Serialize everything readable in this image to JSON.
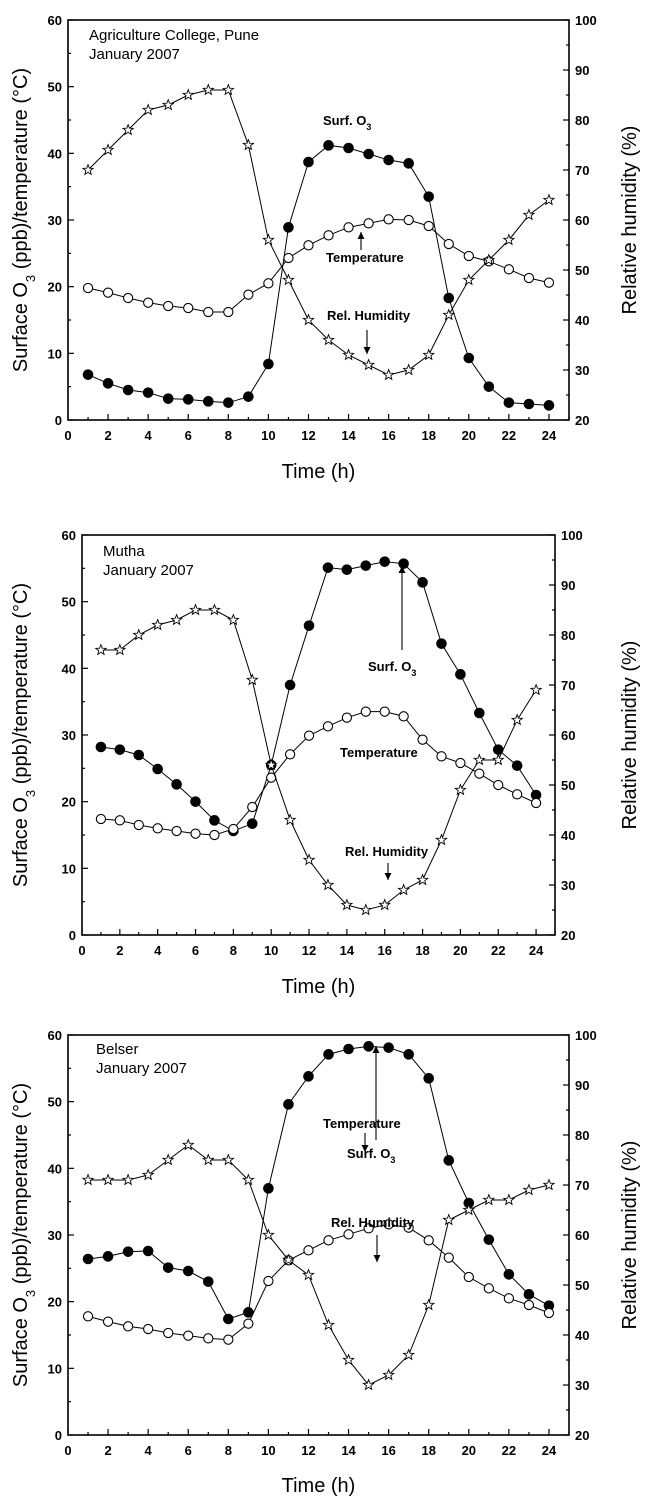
{
  "axes_text": {
    "y_left_prefix": "Surface O",
    "y_left_sub": "3",
    "y_left_suffix": " (ppb)/temperature (°C)",
    "y_right": "Relative humidity (%)",
    "x": "Time (h)",
    "annot_o3_prefix": "Surf. O",
    "annot_o3_sub": "3",
    "annot_temp": "Temperature",
    "annot_rh": "Rel. Humidity"
  },
  "chart_data": [
    {
      "type": "line",
      "site": "Agriculture College, Pune",
      "period": "January 2007",
      "xlabel": "Time (h)",
      "ylabel_left": "Surface O3 (ppb)/temperature (°C)",
      "ylabel_right": "Relative humidity (%)",
      "xlim": [
        0,
        25
      ],
      "ylim_left": [
        0,
        60
      ],
      "ylim_right": [
        20,
        100
      ],
      "x": [
        1,
        2,
        3,
        4,
        5,
        6,
        7,
        8,
        9,
        10,
        11,
        12,
        13,
        14,
        15,
        16,
        17,
        18,
        19,
        20,
        21,
        22,
        23,
        24
      ],
      "series": [
        {
          "name": "Surf. O3",
          "axis": "left",
          "marker": "filled-circle",
          "values": [
            6.8,
            5.5,
            4.5,
            4.1,
            3.2,
            3.1,
            2.8,
            2.6,
            3.5,
            8.4,
            28.9,
            38.7,
            41.2,
            40.8,
            39.9,
            39.0,
            38.5,
            33.5,
            18.3,
            9.3,
            5.0,
            2.6,
            2.4,
            2.2
          ]
        },
        {
          "name": "Temperature",
          "axis": "left",
          "marker": "open-circle",
          "values": [
            19.8,
            19.1,
            18.3,
            17.6,
            17.1,
            16.8,
            16.2,
            16.2,
            18.8,
            20.5,
            24.3,
            26.2,
            27.7,
            28.9,
            29.5,
            30.1,
            30.0,
            29.1,
            26.4,
            24.6,
            23.8,
            22.6,
            21.3,
            20.6
          ]
        },
        {
          "name": "Rel. Humidity",
          "axis": "right",
          "marker": "open-star",
          "values": [
            70,
            74,
            78,
            82,
            83,
            85,
            86,
            86,
            75,
            56,
            48,
            40,
            36,
            33,
            31,
            29,
            30,
            33,
            41,
            48,
            52,
            56,
            61,
            64
          ]
        }
      ]
    },
    {
      "type": "line",
      "site": "Mutha",
      "period": "January 2007",
      "xlabel": "Time (h)",
      "ylabel_left": "Surface O3 (ppb)/temperature (°C)",
      "ylabel_right": "Relative humidity (%)",
      "xlim": [
        0,
        25
      ],
      "ylim_left": [
        0,
        60
      ],
      "ylim_right": [
        20,
        100
      ],
      "x": [
        1,
        2,
        3,
        4,
        5,
        6,
        7,
        8,
        9,
        10,
        11,
        12,
        13,
        14,
        15,
        16,
        17,
        18,
        19,
        20,
        21,
        22,
        23,
        24
      ],
      "series": [
        {
          "name": "Surf. O3",
          "axis": "left",
          "marker": "filled-circle",
          "values": [
            28.2,
            27.8,
            27.0,
            24.9,
            22.6,
            20.0,
            17.2,
            15.6,
            16.7,
            25.5,
            37.5,
            46.4,
            55.1,
            54.8,
            55.4,
            56.0,
            55.7,
            52.9,
            43.7,
            39.1,
            33.3,
            27.8,
            25.4,
            21.0
          ]
        },
        {
          "name": "Temperature",
          "axis": "left",
          "marker": "open-circle",
          "values": [
            17.4,
            17.2,
            16.5,
            16.0,
            15.6,
            15.2,
            15.0,
            15.9,
            19.2,
            23.6,
            27.1,
            29.9,
            31.3,
            32.6,
            33.5,
            33.5,
            32.8,
            29.3,
            26.8,
            25.8,
            24.2,
            22.5,
            21.1,
            19.8
          ]
        },
        {
          "name": "Rel. Humidity",
          "axis": "right",
          "marker": "open-star",
          "values": [
            77,
            77,
            80,
            82,
            83,
            85,
            85,
            83,
            71,
            54,
            43,
            35,
            30,
            26,
            25,
            26,
            29,
            31,
            39,
            49,
            55,
            55,
            63,
            69
          ]
        }
      ]
    },
    {
      "type": "line",
      "site": "Belser",
      "period": "January 2007",
      "xlabel": "Time (h)",
      "ylabel_left": "Surface O3 (ppb)/temperature (°C)",
      "ylabel_right": "Relative humidity (%)",
      "xlim": [
        0,
        25
      ],
      "ylim_left": [
        0,
        60
      ],
      "ylim_right": [
        20,
        100
      ],
      "x": [
        1,
        2,
        3,
        4,
        5,
        6,
        7,
        8,
        9,
        10,
        11,
        12,
        13,
        14,
        15,
        16,
        17,
        18,
        19,
        20,
        21,
        22,
        23,
        24
      ],
      "series": [
        {
          "name": "Surf. O3",
          "axis": "left",
          "marker": "filled-circle",
          "values": [
            26.4,
            26.8,
            27.5,
            27.6,
            25.1,
            24.6,
            23.0,
            17.4,
            18.4,
            37.0,
            49.6,
            53.8,
            57.1,
            57.9,
            58.3,
            58.1,
            57.1,
            53.5,
            41.2,
            34.8,
            29.3,
            24.1,
            21.1,
            19.4
          ]
        },
        {
          "name": "Temperature",
          "axis": "left",
          "marker": "open-circle",
          "values": [
            17.8,
            17.0,
            16.3,
            15.9,
            15.3,
            14.9,
            14.5,
            14.3,
            16.7,
            23.1,
            26.2,
            27.7,
            29.2,
            30.1,
            31.0,
            31.6,
            31.1,
            29.2,
            26.6,
            23.7,
            22.0,
            20.5,
            19.5,
            18.3
          ]
        },
        {
          "name": "Rel. Humidity",
          "axis": "right",
          "marker": "open-star",
          "values": [
            71,
            71,
            71,
            72,
            75,
            78,
            75,
            75,
            71,
            60,
            55,
            52,
            42,
            35,
            30,
            32,
            36,
            46,
            63,
            65,
            67,
            67,
            69,
            70
          ]
        }
      ]
    }
  ]
}
